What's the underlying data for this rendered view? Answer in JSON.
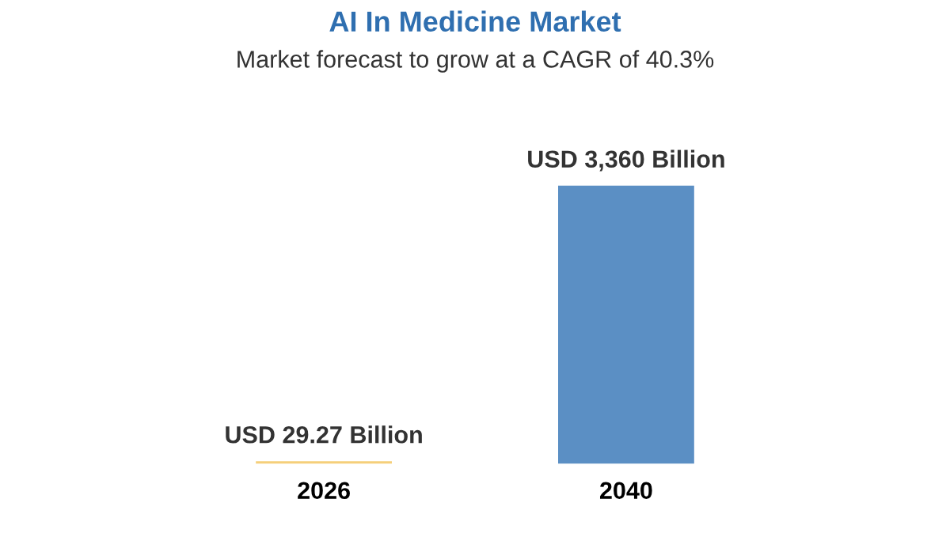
{
  "chart_data": {
    "type": "bar",
    "title": "AI In Medicine Market",
    "subtitle": "Market forecast to grow at a CAGR of 40.3%",
    "categories": [
      "2026",
      "2040"
    ],
    "values": [
      29.27,
      3360
    ],
    "colors": [
      "#f5cf7a",
      "#5b8fc4"
    ],
    "value_labels": [
      "USD 29.27 Billion",
      "USD 3,360 Billion"
    ]
  }
}
